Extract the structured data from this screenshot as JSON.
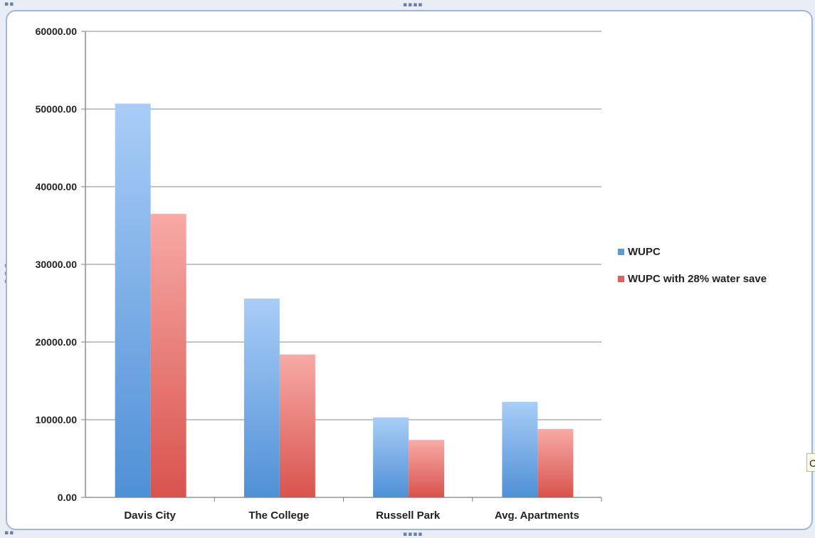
{
  "chart_data": {
    "type": "bar",
    "title": "",
    "xlabel": "",
    "ylabel": "",
    "categories": [
      "Davis City",
      "The College",
      "Russell Park",
      "Avg. Apartments"
    ],
    "series": [
      {
        "name": "WUPC",
        "values": [
          50700,
          25600,
          10300,
          12300
        ],
        "color": "#5b9bd5"
      },
      {
        "name": "WUPC with 28% water save",
        "values": [
          36500,
          18400,
          7400,
          8800
        ],
        "color": "#e0605a"
      }
    ],
    "ylim": [
      0,
      60000
    ],
    "yticks": [
      "0.00",
      "10000.00",
      "20000.00",
      "30000.00",
      "40000.00",
      "50000.00",
      "60000.00"
    ],
    "grid": true,
    "legend_position": "right"
  },
  "edge_glyph": "C"
}
